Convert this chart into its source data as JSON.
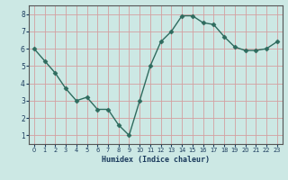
{
  "x": [
    0,
    1,
    2,
    3,
    4,
    5,
    6,
    7,
    8,
    9,
    10,
    11,
    12,
    13,
    14,
    15,
    16,
    17,
    18,
    19,
    20,
    21,
    22,
    23
  ],
  "y": [
    6.0,
    5.3,
    4.6,
    3.7,
    3.0,
    3.2,
    2.5,
    2.5,
    1.6,
    1.0,
    3.0,
    5.0,
    6.4,
    7.0,
    7.9,
    7.9,
    7.5,
    7.4,
    6.7,
    6.1,
    5.9,
    5.9,
    6.0,
    6.4
  ],
  "xlabel": "Humidex (Indice chaleur)",
  "ylim": [
    0.5,
    8.5
  ],
  "xlim": [
    -0.5,
    23.5
  ],
  "yticks": [
    1,
    2,
    3,
    4,
    5,
    6,
    7,
    8
  ],
  "xticks": [
    0,
    1,
    2,
    3,
    4,
    5,
    6,
    7,
    8,
    9,
    10,
    11,
    12,
    13,
    14,
    15,
    16,
    17,
    18,
    19,
    20,
    21,
    22,
    23
  ],
  "line_color": "#2e6b5e",
  "marker_color": "#2e6b5e",
  "bg_color": "#cce8e4",
  "grid_color": "#d4a0a0",
  "axis_bg": "#cce8e4",
  "xlabel_color": "#1a3a5c",
  "tick_color": "#1a3a5c",
  "marker": "D",
  "markersize": 2.5,
  "linewidth": 1.0
}
